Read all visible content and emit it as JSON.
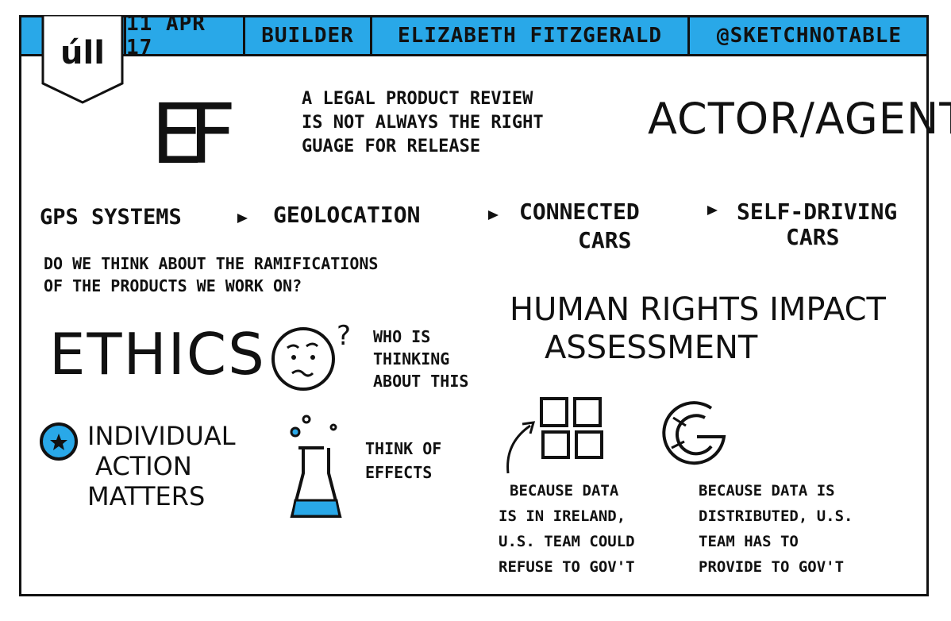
{
  "header": {
    "logo": "úll",
    "date": "11 APR 17",
    "event": "BUILDER",
    "speaker": "ELIZABETH FITZGERALD",
    "handle": "@SKETCHNOTABLE"
  },
  "initials": "EF",
  "quote": [
    "A LEGAL PRODUCT REVIEW",
    "IS NOT ALWAYS THE RIGHT",
    "GUAGE FOR RELEASE"
  ],
  "actor_agent": "ACTOR/AGENT",
  "flow": {
    "steps": [
      "GPS SYSTEMS",
      "GEOLOCATION",
      "CONNECTED",
      "CARS",
      "SELF-DRIVING",
      "CARS"
    ]
  },
  "question": [
    "DO WE THINK ABOUT THE RAMIFICATIONS",
    "OF THE PRODUCTS WE WORK ON?"
  ],
  "human_rights": [
    "HUMAN RIGHTS IMPACT",
    "ASSESSMENT"
  ],
  "ethics": "ETHICS",
  "who": [
    "WHO IS",
    "THINKING",
    "ABOUT THIS"
  ],
  "individual": [
    "INDIVIDUAL",
    "ACTION",
    "MATTERS"
  ],
  "think": [
    "THINK OF",
    "EFFECTS"
  ],
  "microsoft_note": [
    "BECAUSE DATA",
    "IS IN IRELAND,",
    "U.S. TEAM COULD",
    "REFUSE TO GOV'T"
  ],
  "google_note": [
    "BECAUSE DATA IS",
    "DISTRIBUTED, U.S.",
    "TEAM HAS TO",
    "PROVIDE TO GOV'T"
  ],
  "colors": {
    "accent": "#29a8e8",
    "ink": "#111111"
  },
  "icons": [
    "sad-face-icon",
    "question-mark-icon",
    "star-bullet-icon",
    "flask-icon",
    "microsoft-logo-icon",
    "google-logo-icon",
    "curved-arrow-icon",
    "arrow-right-icon"
  ]
}
